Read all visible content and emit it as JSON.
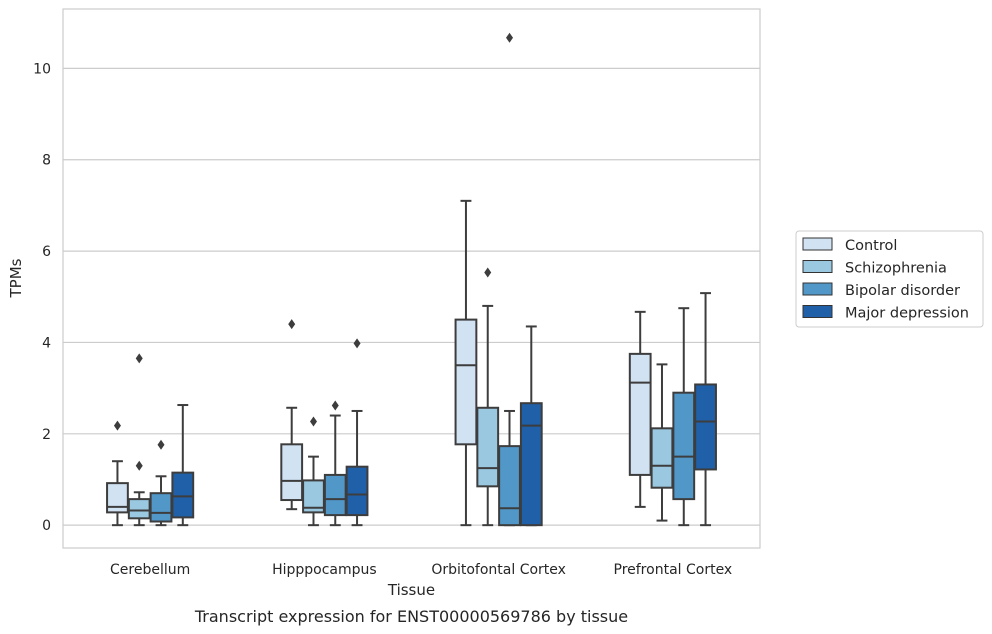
{
  "chart_data": {
    "type": "box",
    "caption": "Transcript expression for ENST00000569786 by tissue",
    "xlabel": "Tissue",
    "ylabel": "TPMs",
    "ylim": [
      -0.5,
      11.3
    ],
    "yticks": [
      "0",
      "2",
      "4",
      "6",
      "8",
      "10"
    ],
    "grid": "horizontal",
    "legend_position": "right",
    "categories": [
      "Cerebellum",
      "Hipppocampus",
      "Orbitofontal Cortex",
      "Prefrontal Cortex"
    ],
    "series": [
      {
        "name": "Control",
        "color": "#d1e2f2",
        "boxes": [
          {
            "whislo": 0.0,
            "q1": 0.28,
            "med": 0.4,
            "q3": 0.92,
            "whishi": 1.4,
            "fliers": [
              2.18
            ]
          },
          {
            "whislo": 0.35,
            "q1": 0.55,
            "med": 0.97,
            "q3": 1.77,
            "whishi": 2.57,
            "fliers": [
              4.4
            ]
          },
          {
            "whislo": 0.0,
            "q1": 1.77,
            "med": 3.5,
            "q3": 4.5,
            "whishi": 7.1,
            "fliers": []
          },
          {
            "whislo": 0.4,
            "q1": 1.1,
            "med": 3.12,
            "q3": 3.75,
            "whishi": 4.67,
            "fliers": []
          }
        ]
      },
      {
        "name": "Schizophrenia",
        "color": "#9ac8e0",
        "boxes": [
          {
            "whislo": 0.0,
            "q1": 0.15,
            "med": 0.32,
            "q3": 0.57,
            "whishi": 0.72,
            "fliers": [
              1.3,
              3.65
            ]
          },
          {
            "whislo": 0.0,
            "q1": 0.28,
            "med": 0.38,
            "q3": 0.98,
            "whishi": 1.5,
            "fliers": [
              2.27
            ]
          },
          {
            "whislo": 0.0,
            "q1": 0.85,
            "med": 1.25,
            "q3": 2.57,
            "whishi": 4.8,
            "fliers": [
              5.53
            ]
          },
          {
            "whislo": 0.1,
            "q1": 0.82,
            "med": 1.3,
            "q3": 2.12,
            "whishi": 3.52,
            "fliers": []
          }
        ]
      },
      {
        "name": "Bipolar disorder",
        "color": "#5198c9",
        "boxes": [
          {
            "whislo": 0.0,
            "q1": 0.08,
            "med": 0.27,
            "q3": 0.7,
            "whishi": 1.07,
            "fliers": [
              1.76
            ]
          },
          {
            "whislo": 0.0,
            "q1": 0.22,
            "med": 0.57,
            "q3": 1.1,
            "whishi": 2.4,
            "fliers": [
              2.62
            ]
          },
          {
            "whislo": 0.0,
            "q1": 0.0,
            "med": 0.37,
            "q3": 1.73,
            "whishi": 2.5,
            "fliers": [
              10.67
            ]
          },
          {
            "whislo": 0.0,
            "q1": 0.57,
            "med": 1.5,
            "q3": 2.9,
            "whishi": 4.75,
            "fliers": []
          }
        ]
      },
      {
        "name": "Major depression",
        "color": "#2060a9",
        "boxes": [
          {
            "whislo": 0.0,
            "q1": 0.17,
            "med": 0.63,
            "q3": 1.15,
            "whishi": 2.63,
            "fliers": []
          },
          {
            "whislo": 0.0,
            "q1": 0.22,
            "med": 0.67,
            "q3": 1.28,
            "whishi": 2.5,
            "fliers": [
              3.98
            ]
          },
          {
            "whislo": 0.0,
            "q1": 0.0,
            "med": 2.18,
            "q3": 2.67,
            "whishi": 4.35,
            "fliers": []
          },
          {
            "whislo": 0.0,
            "q1": 1.22,
            "med": 2.27,
            "q3": 3.08,
            "whishi": 5.08,
            "fliers": []
          }
        ]
      }
    ]
  }
}
